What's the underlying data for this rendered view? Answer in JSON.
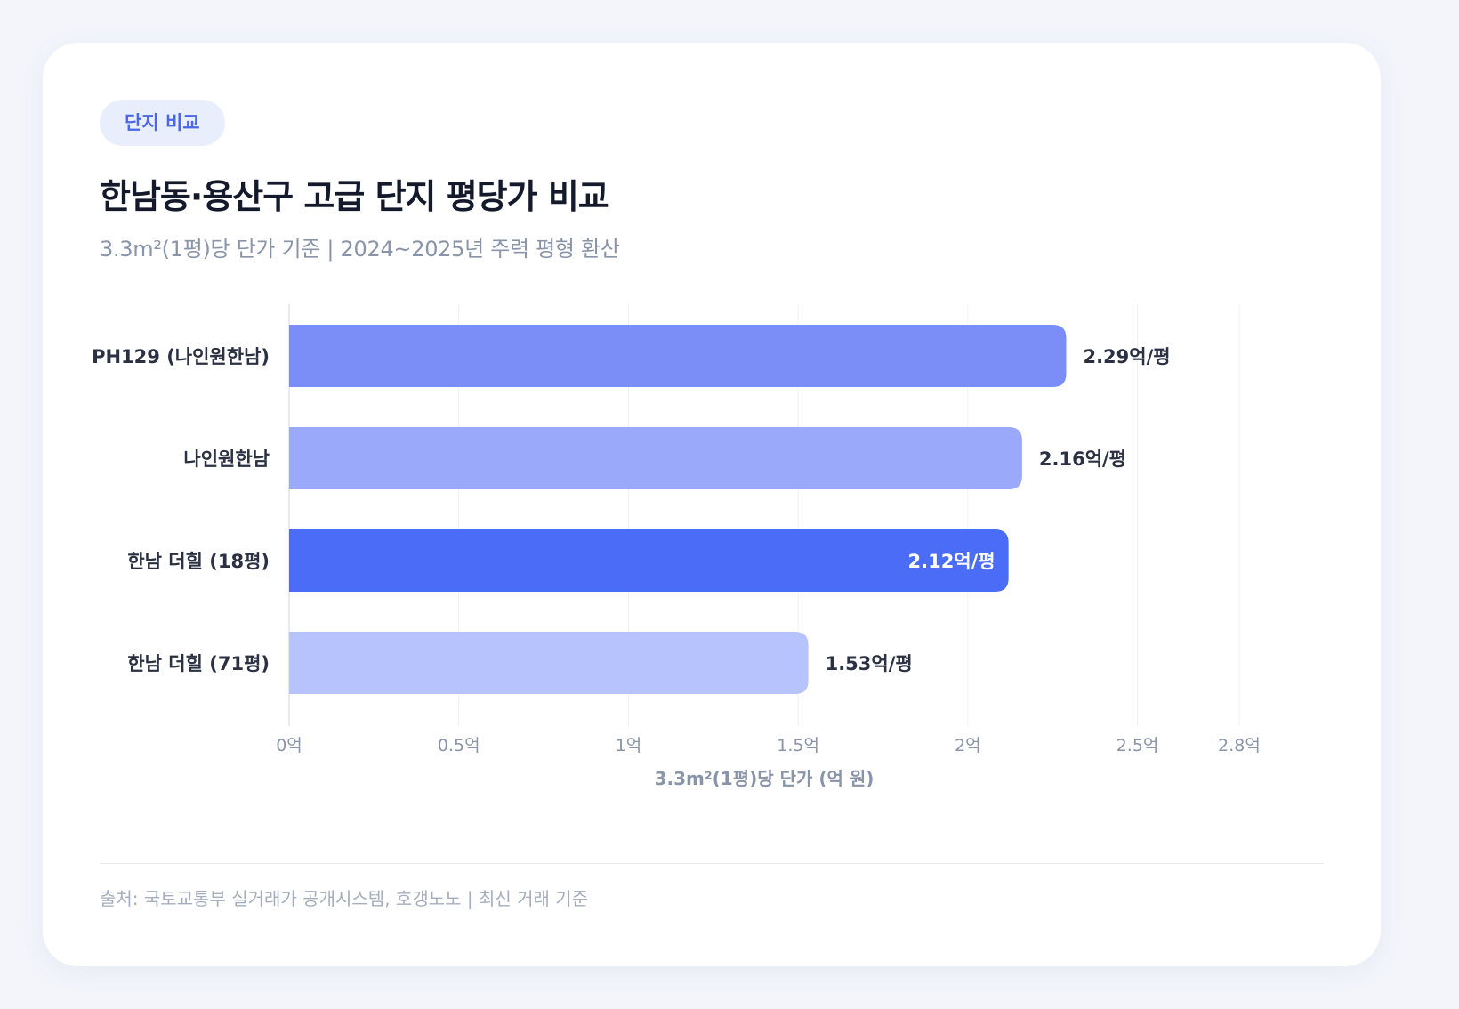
{
  "badge": "단지 비교",
  "title": "한남동·용산구 고급 단지 평당가 비교",
  "subtitle": "3.3m²(1평)당 단가 기준 | 2024~2025년 주력 평형 환산",
  "source": "출처: 국토교통부 실거래가 공개시스템, 호갱노노 | 최신 거래 기준",
  "colors": {
    "bar_1": "#7b8ef8",
    "bar_2": "#9ba9fb",
    "bar_3": "#4a6cf7",
    "bar_4": "#b7c3fd",
    "label_text": "#2b3142",
    "axis_text": "#8a94a8",
    "grid": "#eef0f5"
  },
  "chart_data": {
    "type": "bar",
    "orientation": "horizontal",
    "categories": [
      "PH129 (나인원한남)",
      "나인원한남",
      "한남 더힐 (18평)",
      "한남 더힐 (71평)"
    ],
    "values": [
      2.29,
      2.16,
      2.12,
      1.53
    ],
    "data_labels": [
      "2.29억/평",
      "2.16억/평",
      "2.12억/평",
      "1.53억/평"
    ],
    "highlight_index": 2,
    "xlabel": "3.3m²(1평)당 단가 (억 원)",
    "ylabel": "",
    "xlim": [
      0,
      2.8
    ],
    "xticks": [
      0,
      0.5,
      1,
      1.5,
      2,
      2.5,
      2.8
    ],
    "xtick_labels": [
      "0억",
      "0.5억",
      "1억",
      "1.5억",
      "2억",
      "2.5억",
      "2.8억"
    ],
    "grid": true,
    "legend": "none"
  }
}
